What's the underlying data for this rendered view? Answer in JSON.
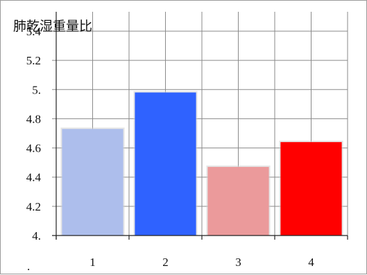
{
  "chart_data": {
    "type": "bar",
    "title": "肺乾湿重量比",
    "categories": [
      "1",
      "2",
      "3",
      "4"
    ],
    "values": [
      4.73,
      4.98,
      4.47,
      4.64
    ],
    "bar_colors": [
      "#adbeec",
      "#2f62ff",
      "#eb9a9b",
      "#ff0000"
    ],
    "ylim": [
      4.0,
      5.4
    ],
    "yticks": [
      "4.",
      "4.2",
      "4.4",
      "4.6",
      "4.8",
      "5.",
      "5.2",
      "5.4"
    ],
    "grid": true,
    "footnote": "."
  }
}
